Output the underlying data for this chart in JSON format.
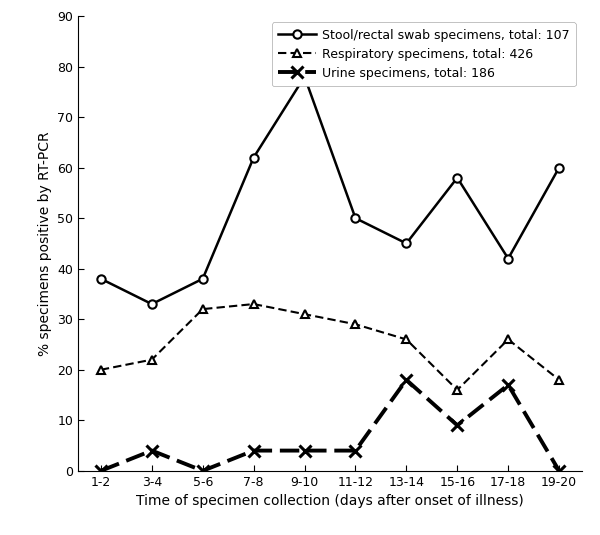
{
  "x_labels": [
    "1-2",
    "3-4",
    "5-6",
    "7-8",
    "9-10",
    "11-12",
    "13-14",
    "15-16",
    "17-18",
    "19-20"
  ],
  "x_positions": [
    0,
    1,
    2,
    3,
    4,
    5,
    6,
    7,
    8,
    9
  ],
  "stool": [
    38,
    33,
    38,
    62,
    78,
    50,
    45,
    58,
    42,
    60
  ],
  "respiratory": [
    20,
    22,
    32,
    33,
    31,
    29,
    26,
    16,
    26,
    18
  ],
  "urine": [
    0,
    4,
    0,
    4,
    4,
    4,
    18,
    9,
    17,
    0
  ],
  "stool_label": "Stool/rectal swab specimens, total: 107",
  "respiratory_label": "Respiratory specimens, total: 426",
  "urine_label": "Urine specimens, total: 186",
  "xlabel": "Time of specimen collection (days after onset of illness)",
  "ylabel": "% specimens positive by RT-PCR",
  "ylim": [
    0,
    90
  ],
  "yticks": [
    0,
    10,
    20,
    30,
    40,
    50,
    60,
    70,
    80,
    90
  ],
  "color": "#000000",
  "background_color": "#ffffff",
  "axis_fontsize": 10,
  "tick_fontsize": 9,
  "legend_fontsize": 9
}
